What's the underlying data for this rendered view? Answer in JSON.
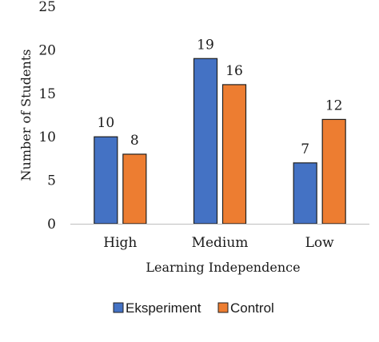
{
  "chart_data": {
    "type": "bar",
    "title": "",
    "xlabel": "Learning Independence",
    "ylabel": "Number of Students",
    "categories": [
      "High",
      "Medium",
      "Low"
    ],
    "series": [
      {
        "name": "Eksperiment",
        "values": [
          10,
          19,
          7
        ],
        "color": "#4472C4"
      },
      {
        "name": "Control",
        "values": [
          8,
          16,
          12
        ],
        "color": "#ED7D31"
      }
    ],
    "ylim": [
      0,
      25
    ],
    "yticks": [
      0,
      5,
      10,
      15,
      20,
      25
    ],
    "grid": false,
    "data_labels": true,
    "legend_position": "bottom"
  }
}
